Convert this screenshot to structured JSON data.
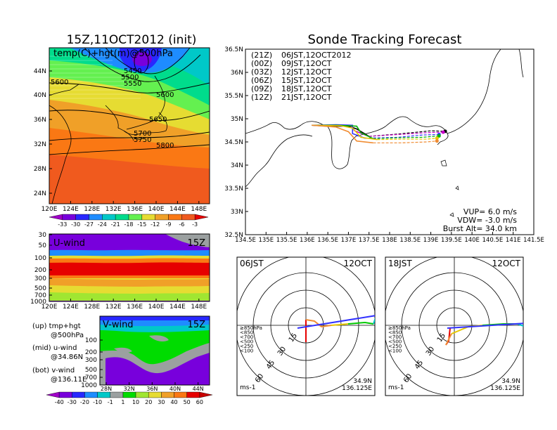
{
  "main_title": "15Z,11OCT2012 (init)",
  "sonde_title": "Sonde Tracking Forecast",
  "map": {
    "label": "temp(C)+hgt(m)@500hPa",
    "lat_labels": [
      "44N",
      "40N",
      "36N",
      "32N",
      "28N",
      "24N"
    ],
    "lon_labels": [
      "120E",
      "124E",
      "128E",
      "132E",
      "136E",
      "140E",
      "144E",
      "148E"
    ],
    "contours": [
      "5450",
      "5500",
      "5550",
      "5600",
      "5600",
      "5650",
      "5700",
      "5750",
      "5800"
    ],
    "contour_levels": [
      5450,
      5500,
      5550,
      5600,
      5650,
      5700,
      5750,
      5800
    ]
  },
  "temp_colorbar": {
    "labels": [
      "-33",
      "-30",
      "-27",
      "-24",
      "-21",
      "-18",
      "-15",
      "-12",
      "-9",
      "-6",
      "-3"
    ],
    "colors": [
      "#a000c8",
      "#7800dc",
      "#2828ff",
      "#1e8cff",
      "#00c8c8",
      "#00dc8c",
      "#64f050",
      "#e6dc32",
      "#f0a028",
      "#fa7814",
      "#f05a1e",
      "#e60000"
    ]
  },
  "uwind": {
    "label": "U-wind",
    "time": "15Z",
    "levels": [
      "30",
      "50",
      "100",
      "200",
      "300",
      "500",
      "700",
      "1000"
    ],
    "lon_labels": [
      "120E",
      "124E",
      "128E",
      "132E",
      "136E",
      "140E",
      "144E",
      "148E"
    ]
  },
  "vwind": {
    "label": "V-wind",
    "time": "15Z",
    "levels": [
      "100",
      "200",
      "300",
      "500",
      "700",
      "1000"
    ],
    "lat_labels": [
      "28N",
      "32N",
      "36N",
      "40N",
      "44N"
    ]
  },
  "legend_notes": [
    {
      "title": "(up) tmp+hgt",
      "sub": "@500hPa"
    },
    {
      "title": "(mid) u-wind",
      "sub": "@34.86N"
    },
    {
      "title": "(bot) v-wind",
      "sub": "@136.11E"
    }
  ],
  "wind_colorbar": {
    "labels": [
      "-40",
      "-30",
      "-20",
      "-10",
      "-1",
      "1",
      "10",
      "20",
      "30",
      "40",
      "50",
      "60"
    ],
    "colors": [
      "#a000c8",
      "#7800dc",
      "#2828ff",
      "#1e8cff",
      "#00c8c8",
      "#9ba0a0",
      "#00dc00",
      "#a0e632",
      "#e6dc32",
      "#f0a028",
      "#fa7814",
      "#e60000",
      "#c80000"
    ]
  },
  "tracking": {
    "lat_labels": [
      "36.5N",
      "36N",
      "35.5N",
      "35N",
      "34.5N",
      "34N",
      "33.5N",
      "33N",
      "32.5N"
    ],
    "lon_labels": [
      "134.5E",
      "135E",
      "135.5E",
      "136E",
      "136.5E",
      "137E",
      "137.5E",
      "138E",
      "138.5E",
      "139E",
      "139.5E",
      "140E",
      "140.5E",
      "141E",
      "141.5E"
    ],
    "lon_range": [
      134.5,
      141.5
    ],
    "lat_range": [
      32.5,
      36.5
    ],
    "launches": [
      {
        "utc": "(21Z)",
        "jst": "06JST,12OCT2012",
        "color": "#000000"
      },
      {
        "utc": "(00Z)",
        "jst": "09JST,12OCT",
        "color": "#c800c8"
      },
      {
        "utc": "(03Z)",
        "jst": "12JST,12OCT",
        "color": "#3232ff"
      },
      {
        "utc": "(06Z)",
        "jst": "15JST,12OCT",
        "color": "#00b400"
      },
      {
        "utc": "(09Z)",
        "jst": "18JST,12OCT",
        "color": "#e6c800"
      },
      {
        "utc": "(12Z)",
        "jst": "21JST,12OCT",
        "color": "#f08c32"
      }
    ],
    "params": [
      "VUP= 6.0 m/s",
      "VDW= -3.0 m/s",
      "Burst Alt= 34.0 km"
    ]
  },
  "hodographs": [
    {
      "time": "06JST",
      "date": "12OCT",
      "lat": "34.9N",
      "lon": "136.125E",
      "unit": "ms-1",
      "rings": [
        "15",
        "30",
        "45",
        "60"
      ]
    },
    {
      "time": "18JST",
      "date": "12OCT",
      "lat": "34.9N",
      "lon": "136.125E",
      "unit": "ms-1",
      "rings": [
        "15",
        "30",
        "45",
        "60"
      ]
    }
  ],
  "hodo_legend": [
    {
      "text": "≥850hPa",
      "color": "#e60000"
    },
    {
      "text": "<850",
      "color": "#f08c32"
    },
    {
      "text": "<700",
      "color": "#e6c800"
    },
    {
      "text": "<500",
      "color": "#00c800"
    },
    {
      "text": "<250",
      "color": "#00c8c8"
    },
    {
      "text": "<100",
      "color": "#3232ff"
    }
  ],
  "chart_data": {
    "type": "line",
    "title": "Sonde Tracking Forecast",
    "xlabel": "",
    "ylabel": "",
    "xlim": [
      134.5,
      141.5
    ],
    "ylim": [
      32.5,
      36.5
    ],
    "series": [
      {
        "name": "(21Z) 06JST,12OCT2012",
        "x": [
          136.11,
          136.5,
          137.0,
          137.2,
          137.5,
          138.2,
          139.0,
          139.35
        ],
        "y": [
          34.86,
          34.84,
          34.84,
          34.78,
          34.62,
          34.67,
          34.74,
          34.73
        ]
      },
      {
        "name": "(00Z) 09JST,12OCT",
        "x": [
          136.11,
          136.6,
          137.05,
          137.15,
          137.5,
          138.2,
          138.9,
          139.3
        ],
        "y": [
          34.86,
          34.86,
          34.85,
          34.74,
          34.62,
          34.66,
          34.7,
          34.71
        ]
      },
      {
        "name": "(03Z) 12JST,12OCT",
        "x": [
          136.11,
          136.7,
          137.1,
          137.1,
          137.4,
          138.2,
          138.8,
          139.2
        ],
        "y": [
          34.86,
          34.87,
          34.86,
          34.68,
          34.58,
          34.6,
          34.65,
          34.66
        ]
      },
      {
        "name": "(06Z) 15JST,12OCT",
        "x": [
          136.11,
          136.7,
          137.2,
          137.3,
          137.6,
          138.2,
          138.8,
          139.2
        ],
        "y": [
          34.86,
          34.86,
          34.84,
          34.7,
          34.57,
          34.59,
          34.6,
          34.63
        ]
      },
      {
        "name": "(09Z) 18JST,12OCT",
        "x": [
          136.11,
          136.8,
          137.1,
          137.3,
          137.7,
          138.3,
          138.9,
          139.15
        ],
        "y": [
          34.86,
          34.85,
          34.8,
          34.6,
          34.55,
          34.56,
          34.56,
          34.58
        ]
      },
      {
        "name": "(12Z) 21JST,12OCT",
        "x": [
          136.11,
          136.7,
          137.0,
          137.2,
          137.6,
          138.3,
          138.9,
          139.15
        ],
        "y": [
          34.86,
          34.82,
          34.72,
          34.52,
          34.48,
          34.48,
          34.5,
          34.52
        ]
      }
    ]
  }
}
